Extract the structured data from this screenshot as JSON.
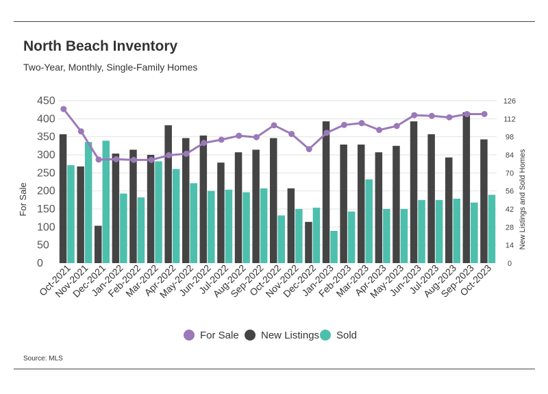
{
  "title": "North Beach Inventory",
  "subtitle": "Two-Year, Monthly, Single-Family Homes",
  "source": "Source: MLS",
  "chart_data": {
    "type": "bar",
    "categories": [
      "Oct-2021",
      "Nov-2021",
      "Dec-2021",
      "Jan-2022",
      "Feb-2022",
      "Mar-2022",
      "Apr-2022",
      "May-2022",
      "Jun-2022",
      "Jul-2022",
      "Aug-2022",
      "Sep-2022",
      "Oct-2022",
      "Nov-2022",
      "Dec-2022",
      "Jan-2023",
      "Feb-2023",
      "Mar-2023",
      "Apr-2023",
      "May-2023",
      "Jun-2023",
      "Jul-2023",
      "Aug-2023",
      "Sep-2023",
      "Oct-2023"
    ],
    "series": [
      {
        "name": "For Sale",
        "type": "line",
        "axis": "left",
        "color": "#9b79b8",
        "values": [
          427,
          365,
          287,
          288,
          286,
          286,
          299,
          303,
          333,
          342,
          353,
          349,
          382,
          358,
          316,
          361,
          383,
          388,
          369,
          380,
          410,
          408,
          404,
          413,
          413
        ]
      },
      {
        "name": "New Listings",
        "type": "bar",
        "axis": "right",
        "color": "#444444",
        "values": [
          100,
          75,
          29,
          85,
          88,
          84,
          107,
          97,
          99,
          78,
          86,
          88,
          97,
          58,
          32,
          110,
          92,
          92,
          86,
          91,
          110,
          100,
          82,
          117,
          96
        ]
      },
      {
        "name": "Sold",
        "type": "bar",
        "axis": "right",
        "color": "#4dbfad",
        "values": [
          76,
          94,
          95,
          54,
          51,
          79,
          73,
          62,
          56,
          57,
          55,
          58,
          37,
          42,
          43,
          25,
          40,
          65,
          42,
          42,
          49,
          49,
          50,
          47,
          53
        ]
      }
    ],
    "ylabel": "For Sale",
    "ylabel_right": "New Listings and Sold Homes",
    "y_ticks": [
      "0",
      "50",
      "100",
      "150",
      "200",
      "250",
      "300",
      "350",
      "400",
      "450"
    ],
    "y_right_ticks": [
      "0",
      "14",
      "28",
      "42",
      "56",
      "70",
      "84",
      "98",
      "112",
      "126"
    ],
    "ylim": [
      0,
      450
    ],
    "ylim_right": [
      0,
      126
    ],
    "grid": true,
    "legend_position": "bottom"
  }
}
